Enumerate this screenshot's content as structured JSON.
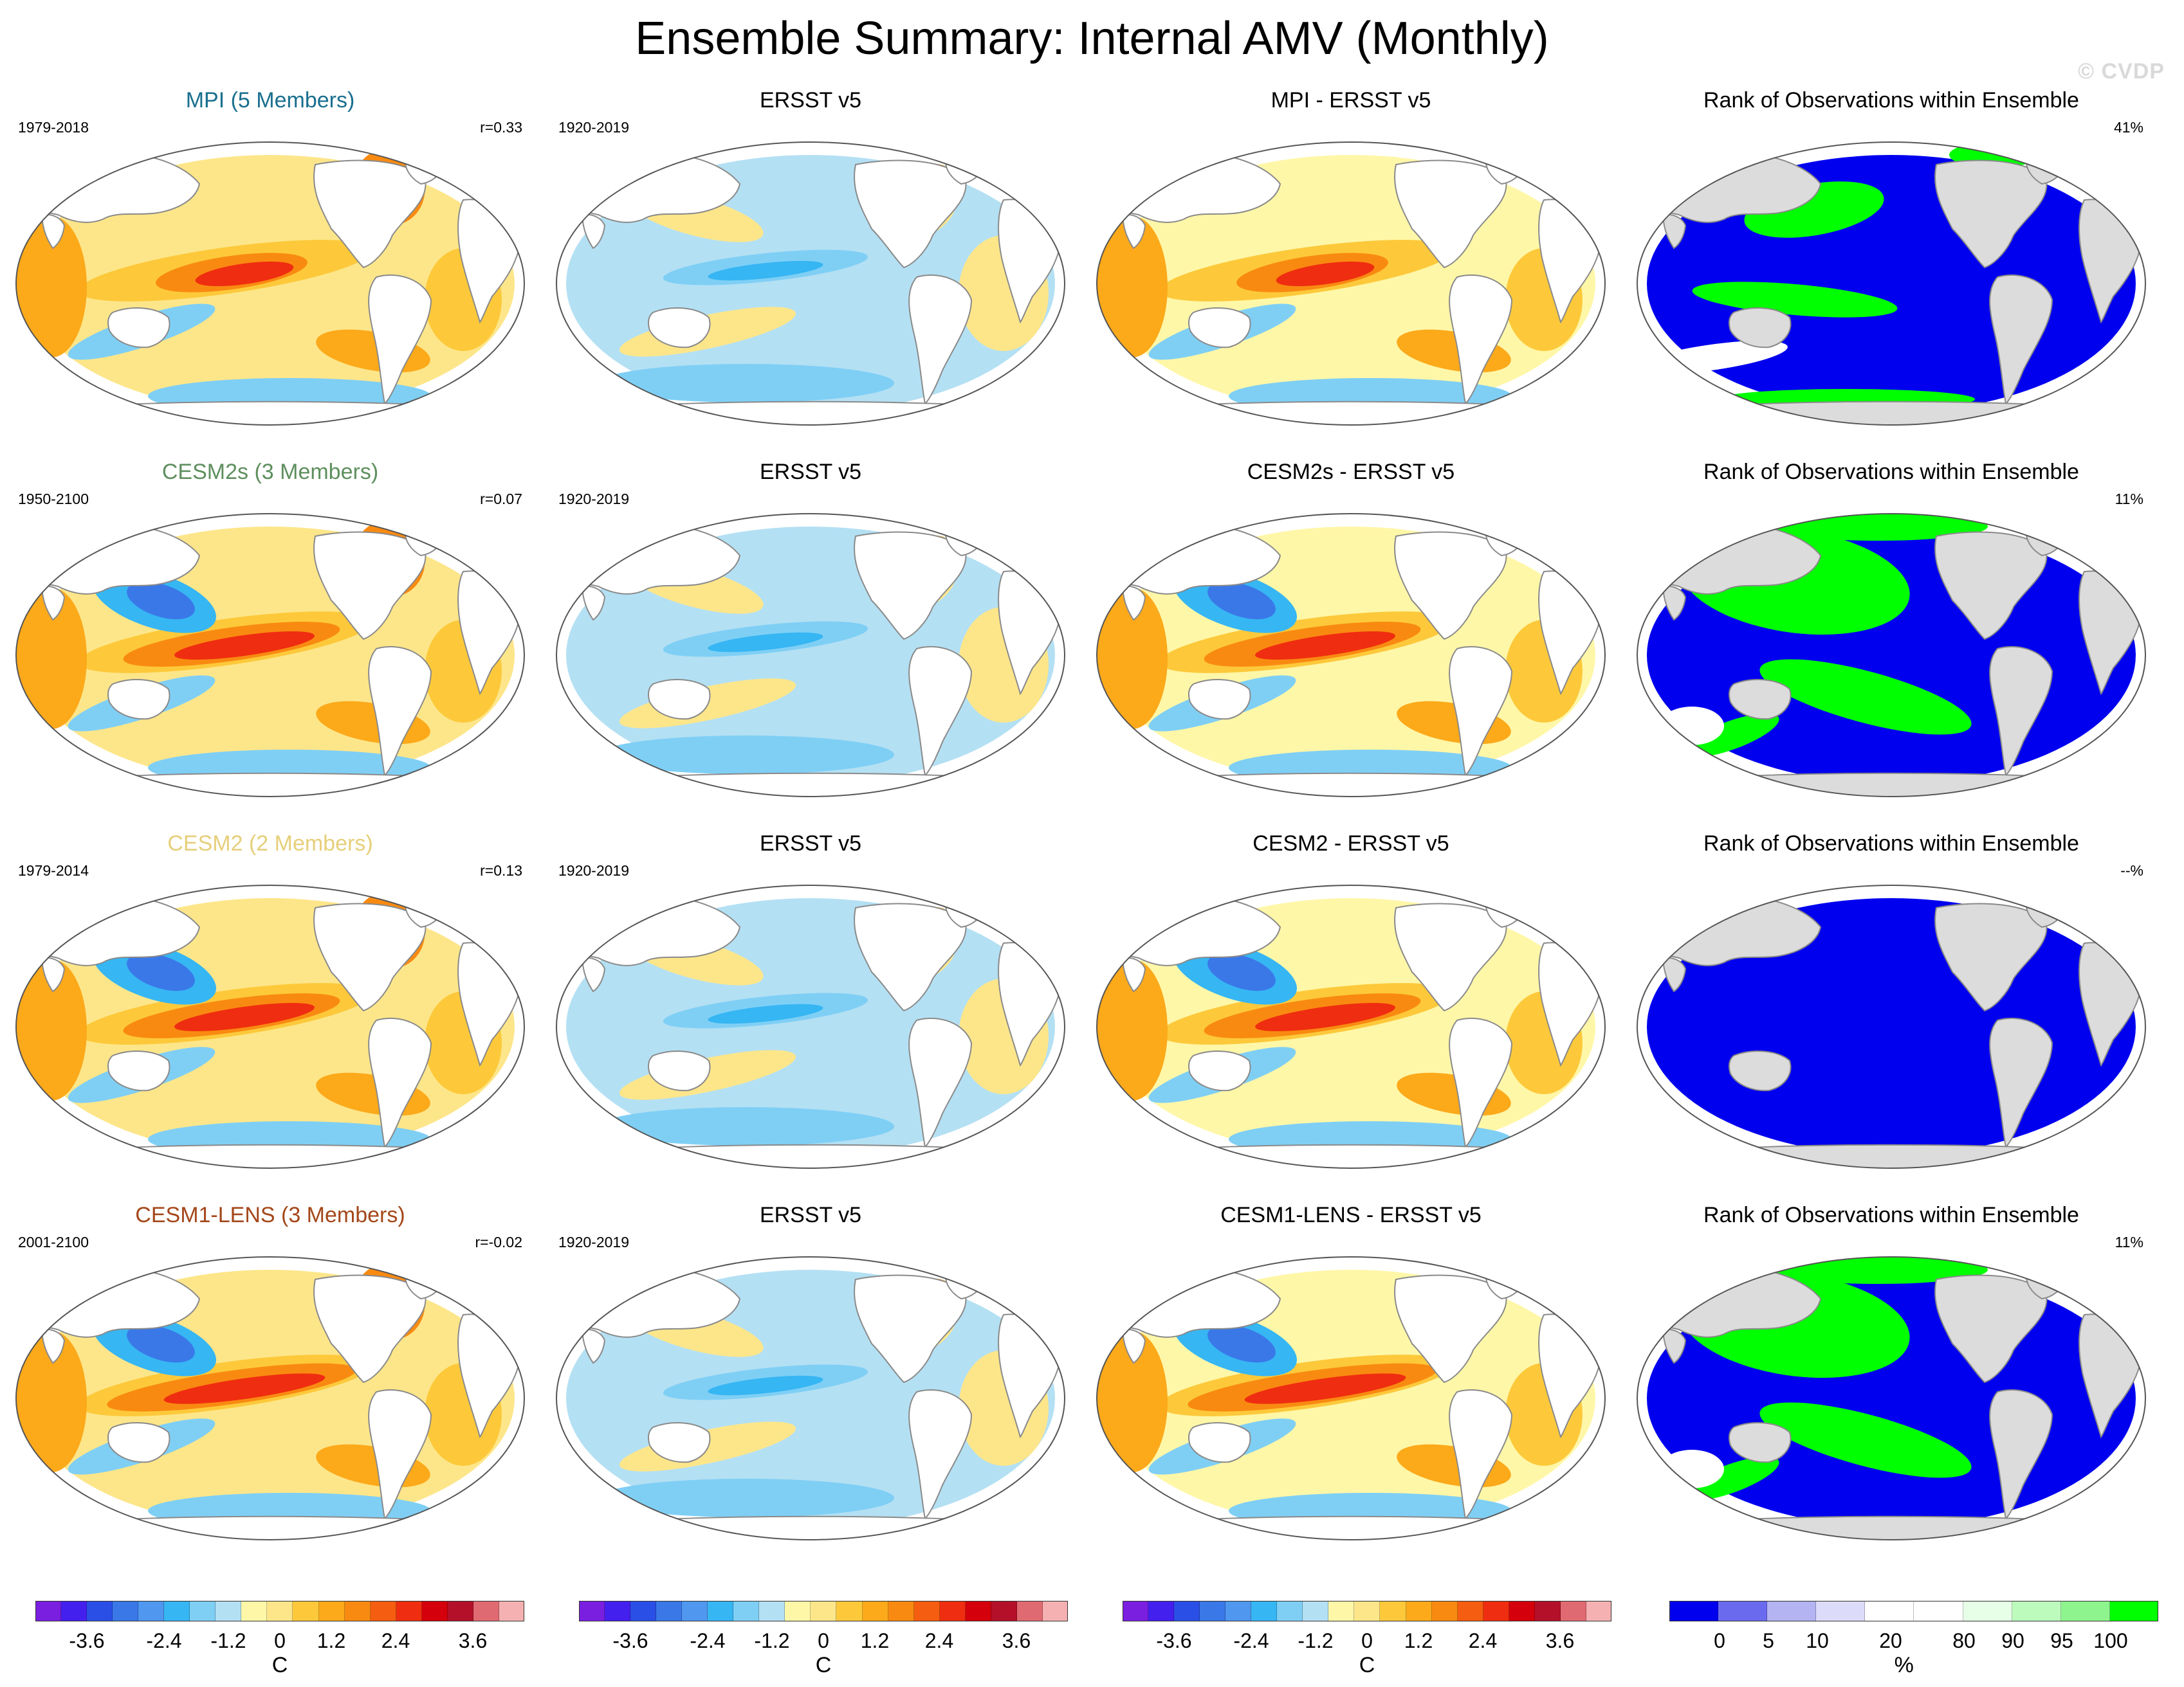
{
  "title": "Ensemble Summary: Internal AMV (Monthly)",
  "watermark": "© CVDP",
  "colors": {
    "land": "#ffffff",
    "land_rank": "#dcdcdc",
    "rank_low": "#0000ee",
    "rank_high": "#00ff00",
    "coast": "#8a8a8a"
  },
  "rows": [
    {
      "model": {
        "title": "MPI (5 Members)",
        "title_color": "#1a6f8f",
        "period": "1979-2018",
        "stat": "r=0.33"
      },
      "obs": {
        "title": "ERSST v5",
        "title_color": "#000000",
        "period": "1920-2019",
        "stat": ""
      },
      "diff": {
        "title": "MPI - ERSST v5",
        "title_color": "#000000",
        "period": "",
        "stat": ""
      },
      "rank": {
        "title": "Rank of Observations within Ensemble",
        "title_color": "#000000",
        "period": "",
        "stat": "41%"
      }
    },
    {
      "model": {
        "title": "CESM2s (3 Members)",
        "title_color": "#5e8f5e",
        "period": "1950-2100",
        "stat": "r=0.07"
      },
      "obs": {
        "title": "ERSST v5",
        "title_color": "#000000",
        "period": "1920-2019",
        "stat": ""
      },
      "diff": {
        "title": "CESM2s - ERSST v5",
        "title_color": "#000000",
        "period": "",
        "stat": ""
      },
      "rank": {
        "title": "Rank of Observations within Ensemble",
        "title_color": "#000000",
        "period": "",
        "stat": "11%"
      }
    },
    {
      "model": {
        "title": "CESM2 (2 Members)",
        "title_color": "#e6cf7a",
        "period": "1979-2014",
        "stat": "r=0.13"
      },
      "obs": {
        "title": "ERSST v5",
        "title_color": "#000000",
        "period": "1920-2019",
        "stat": ""
      },
      "diff": {
        "title": "CESM2 - ERSST v5",
        "title_color": "#000000",
        "period": "",
        "stat": ""
      },
      "rank": {
        "title": "Rank of Observations within Ensemble",
        "title_color": "#000000",
        "period": "",
        "stat": "--%"
      }
    },
    {
      "model": {
        "title": "CESM1-LENS (3 Members)",
        "title_color": "#a4471a",
        "period": "2001-2100",
        "stat": "r=-0.02"
      },
      "obs": {
        "title": "ERSST v5",
        "title_color": "#000000",
        "period": "1920-2019",
        "stat": ""
      },
      "diff": {
        "title": "CESM1-LENS - ERSST v5",
        "title_color": "#000000",
        "period": "",
        "stat": ""
      },
      "rank": {
        "title": "Rank of Observations within Ensemble",
        "title_color": "#000000",
        "period": "",
        "stat": "11%"
      }
    }
  ],
  "colorbars": [
    {
      "unit": "C",
      "ticks": [
        "-3.6",
        "-2.4",
        "-1.2",
        "0",
        "1.2",
        "2.4",
        "3.6"
      ],
      "swatches": [
        "#7a1fe0",
        "#4420ee",
        "#2a4fe6",
        "#3a78e8",
        "#4f97ef",
        "#36b6f3",
        "#7fcff5",
        "#b4e0f3",
        "#fff7a8",
        "#fde68a",
        "#fdc93a",
        "#fca91a",
        "#f98a11",
        "#f55d10",
        "#ef2d10",
        "#d4000b",
        "#b4102a",
        "#e06a72",
        "#f5b1b1"
      ]
    },
    {
      "unit": "C",
      "ticks": [
        "-3.6",
        "-2.4",
        "-1.2",
        "0",
        "1.2",
        "2.4",
        "3.6"
      ],
      "swatches": [
        "#7a1fe0",
        "#4420ee",
        "#2a4fe6",
        "#3a78e8",
        "#4f97ef",
        "#36b6f3",
        "#7fcff5",
        "#b4e0f3",
        "#fff7a8",
        "#fde68a",
        "#fdc93a",
        "#fca91a",
        "#f98a11",
        "#f55d10",
        "#ef2d10",
        "#d4000b",
        "#b4102a",
        "#e06a72",
        "#f5b1b1"
      ]
    },
    {
      "unit": "C",
      "ticks": [
        "-3.6",
        "-2.4",
        "-1.2",
        "0",
        "1.2",
        "2.4",
        "3.6"
      ],
      "swatches": [
        "#7a1fe0",
        "#4420ee",
        "#2a4fe6",
        "#3a78e8",
        "#4f97ef",
        "#36b6f3",
        "#7fcff5",
        "#b4e0f3",
        "#fff7a8",
        "#fde68a",
        "#fdc93a",
        "#fca91a",
        "#f98a11",
        "#f55d10",
        "#ef2d10",
        "#d4000b",
        "#b4102a",
        "#e06a72",
        "#f5b1b1"
      ]
    },
    {
      "unit": "%",
      "ticks": [
        "0",
        "5",
        "10",
        "20",
        "80",
        "90",
        "95",
        "100"
      ],
      "swatches": [
        "#0000ee",
        "#6a6aee",
        "#b4b4f2",
        "#dcdcfa",
        "#ffffff",
        "#ffffff",
        "#e6ffe6",
        "#bcfbbc",
        "#8ef58e",
        "#00ff00"
      ]
    }
  ]
}
